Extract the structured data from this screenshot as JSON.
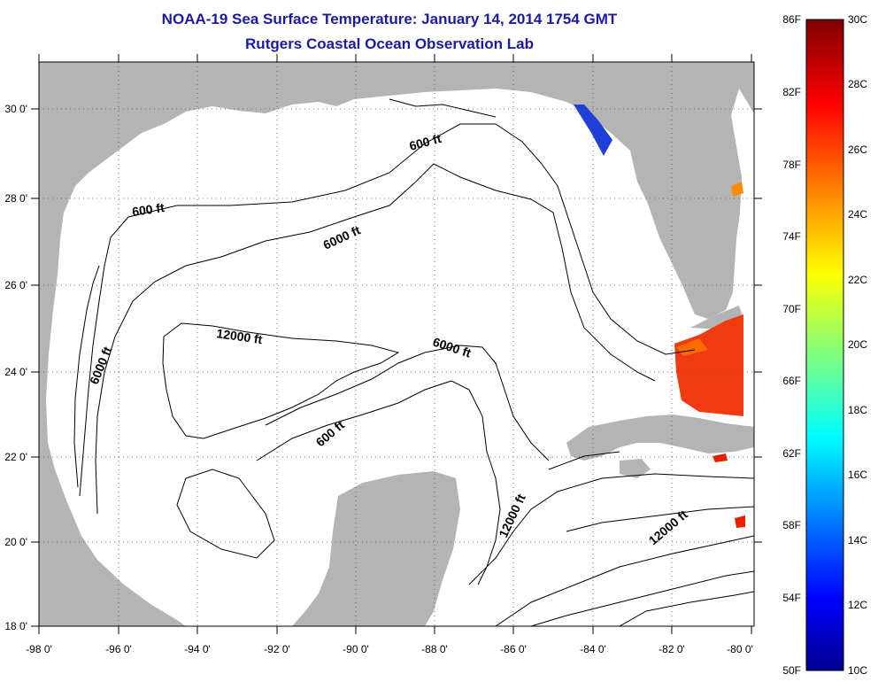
{
  "title": "NOAA-19 Sea Surface Temperature:  January 14, 2014 1754 GMT",
  "subtitle": "Rutgers Coastal Ocean Observation Lab",
  "map": {
    "lon_ticks": [
      "-98 0'",
      "-96 0'",
      "-94 0'",
      "-92 0'",
      "-90 0'",
      "-88 0'",
      "-86 0'",
      "-84 0'",
      "-82 0'",
      "-80 0'"
    ],
    "lat_ticks": [
      "30 0'",
      "28 0'",
      "26 0'",
      "24 0'",
      "22 0'",
      "20 0'",
      "18 0'"
    ],
    "contour_labels": [
      "600 ft",
      "600 ft",
      "6000 ft",
      "6000 ft",
      "12000 ft",
      "6000 ft",
      "600 ft",
      "12000 ft",
      "12000 ft"
    ],
    "land_color": "#b4b4b4",
    "ocean_color": "#ffffff"
  },
  "colorbar": {
    "fahrenheit": [
      "86F",
      "82F",
      "78F",
      "74F",
      "70F",
      "66F",
      "62F",
      "58F",
      "54F",
      "50F"
    ],
    "celsius": [
      "30C",
      "28C",
      "26C",
      "24C",
      "22C",
      "20C",
      "18C",
      "16C",
      "14C",
      "12C",
      "10C"
    ],
    "colormap": "jet"
  }
}
